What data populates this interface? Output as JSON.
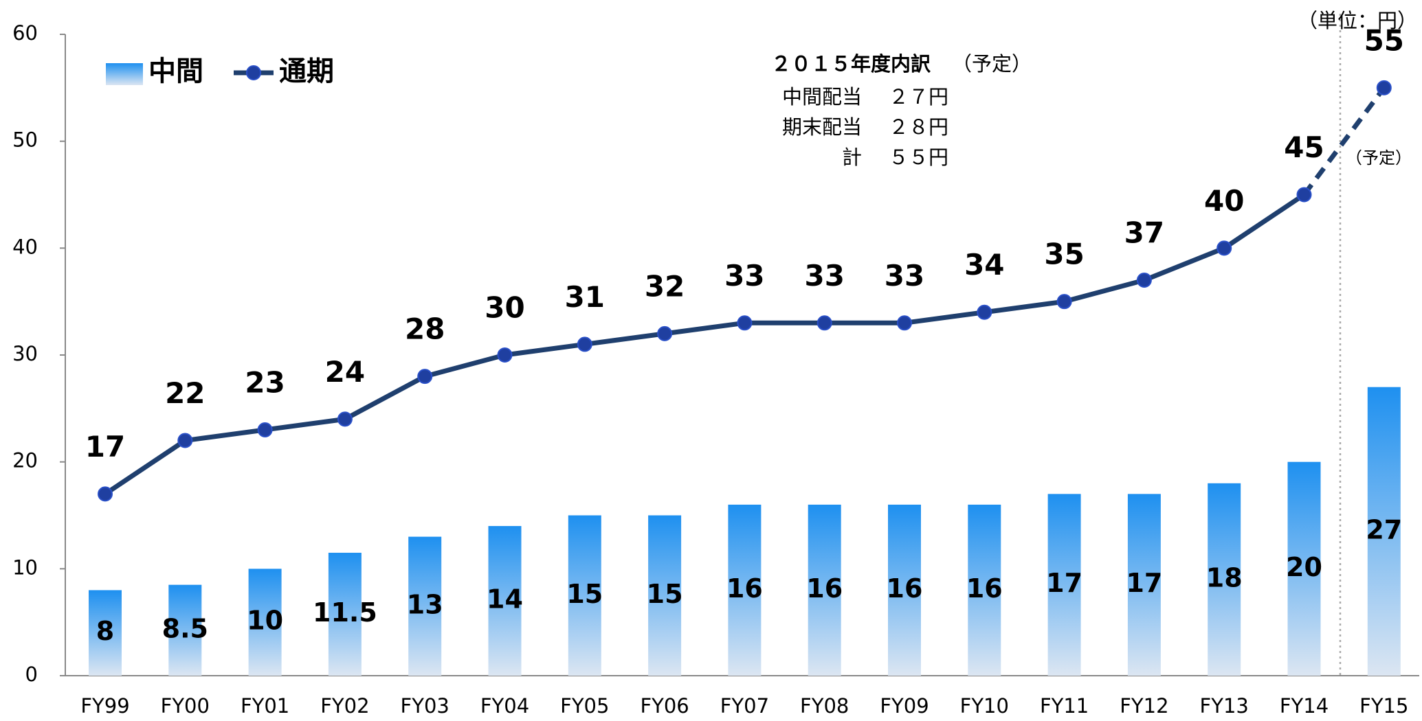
{
  "chart_data": {
    "type": "bar_line",
    "categories": [
      "FY99",
      "FY00",
      "FY01",
      "FY02",
      "FY03",
      "FY04",
      "FY05",
      "FY06",
      "FY07",
      "FY08",
      "FY09",
      "FY10",
      "FY11",
      "FY12",
      "FY13",
      "FY14",
      "FY15"
    ],
    "series": [
      {
        "name": "中間",
        "type": "bar",
        "color": "#1e90f0",
        "values": [
          8,
          8.5,
          10,
          11.5,
          13,
          14,
          15,
          15,
          16,
          16,
          16,
          16,
          17,
          17,
          18,
          20,
          27
        ]
      },
      {
        "name": "通期",
        "type": "line",
        "color": "#1f3f6e",
        "values": [
          17,
          22,
          23,
          24,
          28,
          30,
          31,
          32,
          33,
          33,
          33,
          34,
          35,
          37,
          40,
          45,
          55
        ]
      }
    ],
    "ylim": [
      0,
      60
    ],
    "yticks": [
      0,
      10,
      20,
      30,
      40,
      50,
      60
    ],
    "grid": false,
    "legend": "top-left",
    "unit_label": "（単位：円）",
    "forecast_label": "（予定）",
    "breakdown": {
      "title": "２０１５年度内訳",
      "note": "（予定）",
      "rows": [
        [
          "中間配当",
          "２７円"
        ],
        [
          "期末配当",
          "２８円"
        ],
        [
          "計",
          "５５円"
        ]
      ]
    }
  }
}
